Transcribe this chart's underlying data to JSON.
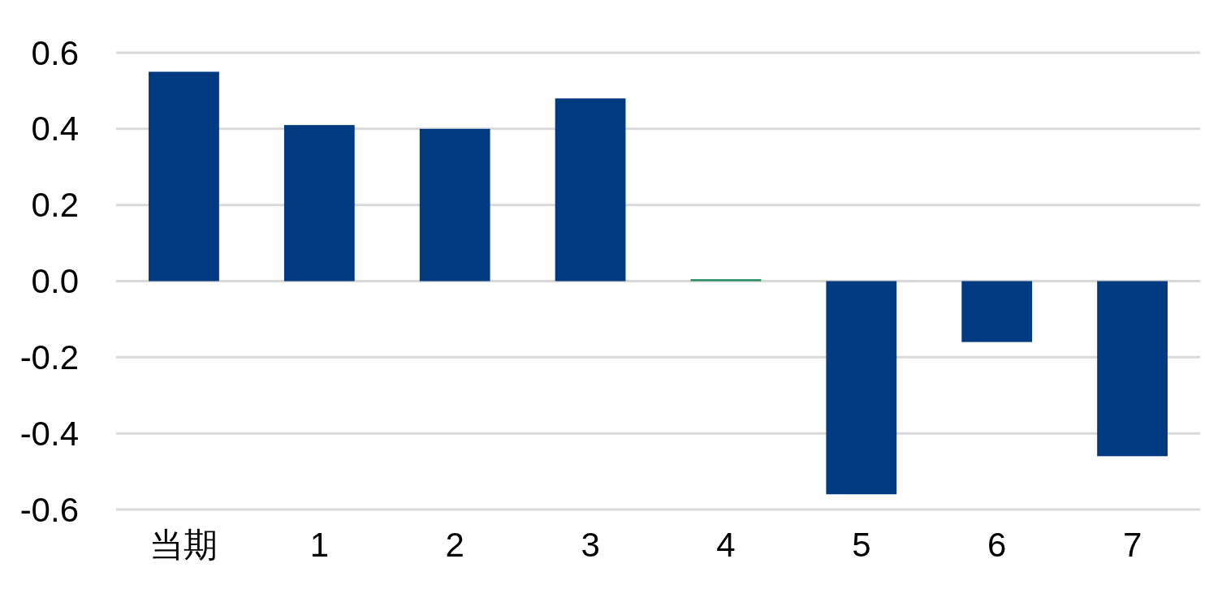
{
  "chart_data": {
    "type": "bar",
    "categories": [
      "当期",
      "1",
      "2",
      "3",
      "4",
      "5",
      "6",
      "7"
    ],
    "values": [
      0.55,
      0.41,
      0.4,
      0.48,
      0.005,
      -0.56,
      -0.16,
      -0.46
    ],
    "colors": [
      "#003a80",
      "#003a80",
      "#003a80",
      "#003a80",
      "#1f8a5c",
      "#003a80",
      "#003a80",
      "#003a80"
    ],
    "ylim": [
      -0.6,
      0.6
    ],
    "yticks": [
      -0.6,
      -0.4,
      -0.2,
      {
        "value": 0,
        "label": "0.0"
      },
      0.2,
      0.4,
      0.6
    ],
    "grid": "y"
  }
}
